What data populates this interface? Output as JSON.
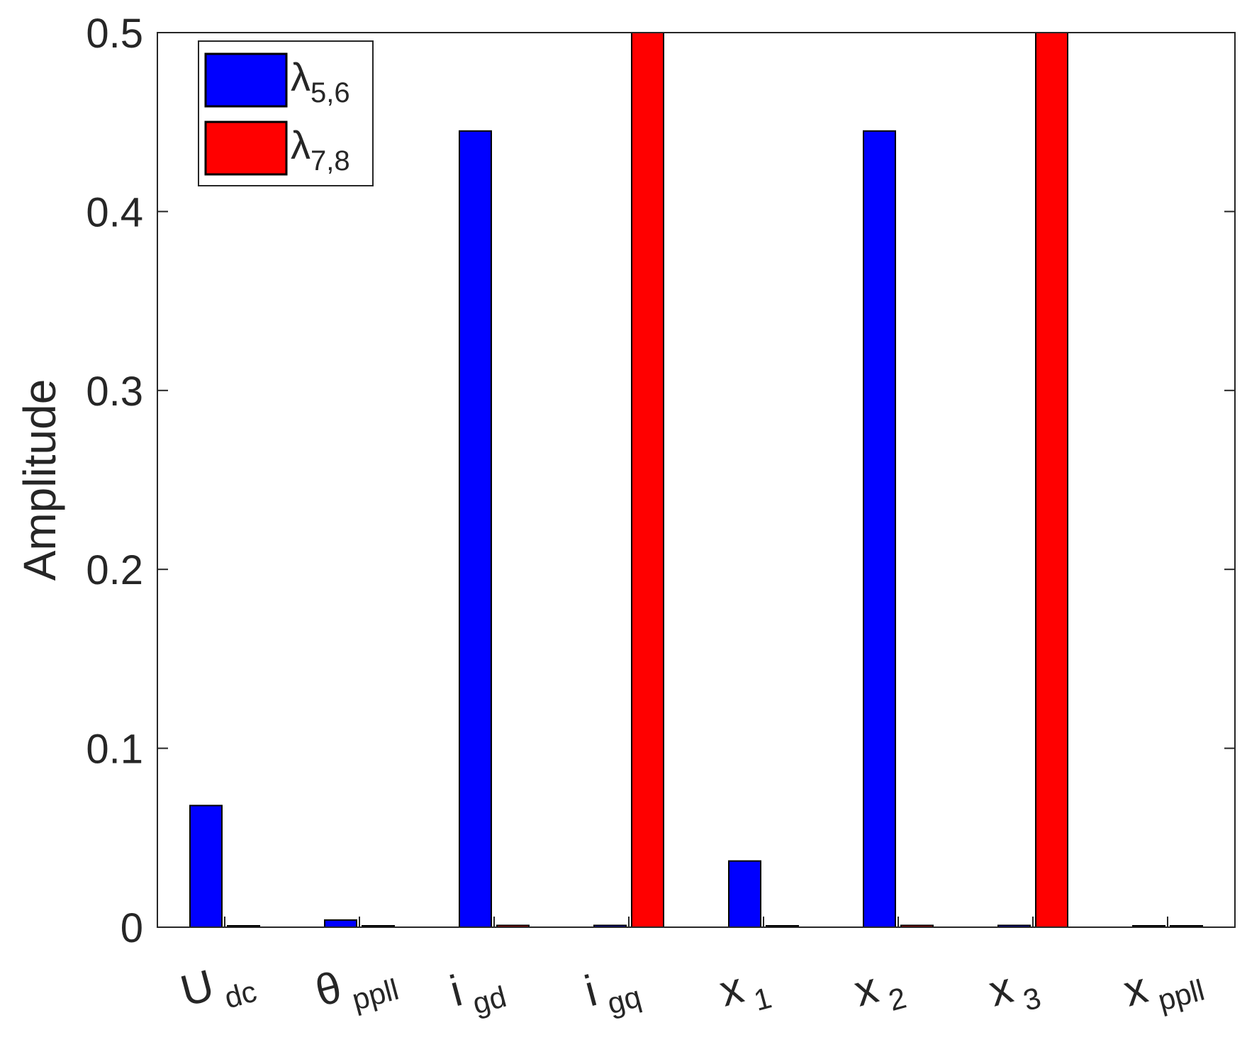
{
  "chart_data": {
    "type": "bar",
    "title": "",
    "xlabel": "",
    "ylabel": "Amplitude",
    "ylim": [
      0,
      0.5
    ],
    "yticks": [
      {
        "value": 0,
        "label": "0"
      },
      {
        "value": 0.1,
        "label": "0.1"
      },
      {
        "value": 0.2,
        "label": "0.2"
      },
      {
        "value": 0.3,
        "label": "0.3"
      },
      {
        "value": 0.4,
        "label": "0.4"
      },
      {
        "value": 0.5,
        "label": "0.5"
      }
    ],
    "categories": [
      {
        "base": "U",
        "sub": "dc"
      },
      {
        "base": "θ",
        "sub": "ppll"
      },
      {
        "base": "i",
        "sub": "gd"
      },
      {
        "base": "i",
        "sub": "gq"
      },
      {
        "base": "x",
        "sub": "1"
      },
      {
        "base": "x",
        "sub": "2"
      },
      {
        "base": "x",
        "sub": "3"
      },
      {
        "base": "x",
        "sub": "ppll"
      }
    ],
    "series": [
      {
        "name": "λ",
        "name_sub": "5,6",
        "color": "#0000ff",
        "values": [
          0.068,
          0.004,
          0.445,
          0.001,
          0.037,
          0.445,
          0.001,
          0.0
        ]
      },
      {
        "name": "λ",
        "name_sub": "7,8",
        "color": "#ff0000",
        "values": [
          0.0,
          0.0,
          0.001,
          0.5,
          0.0,
          0.001,
          0.5,
          0.0
        ]
      }
    ],
    "legend": "top-left",
    "grid": false
  }
}
